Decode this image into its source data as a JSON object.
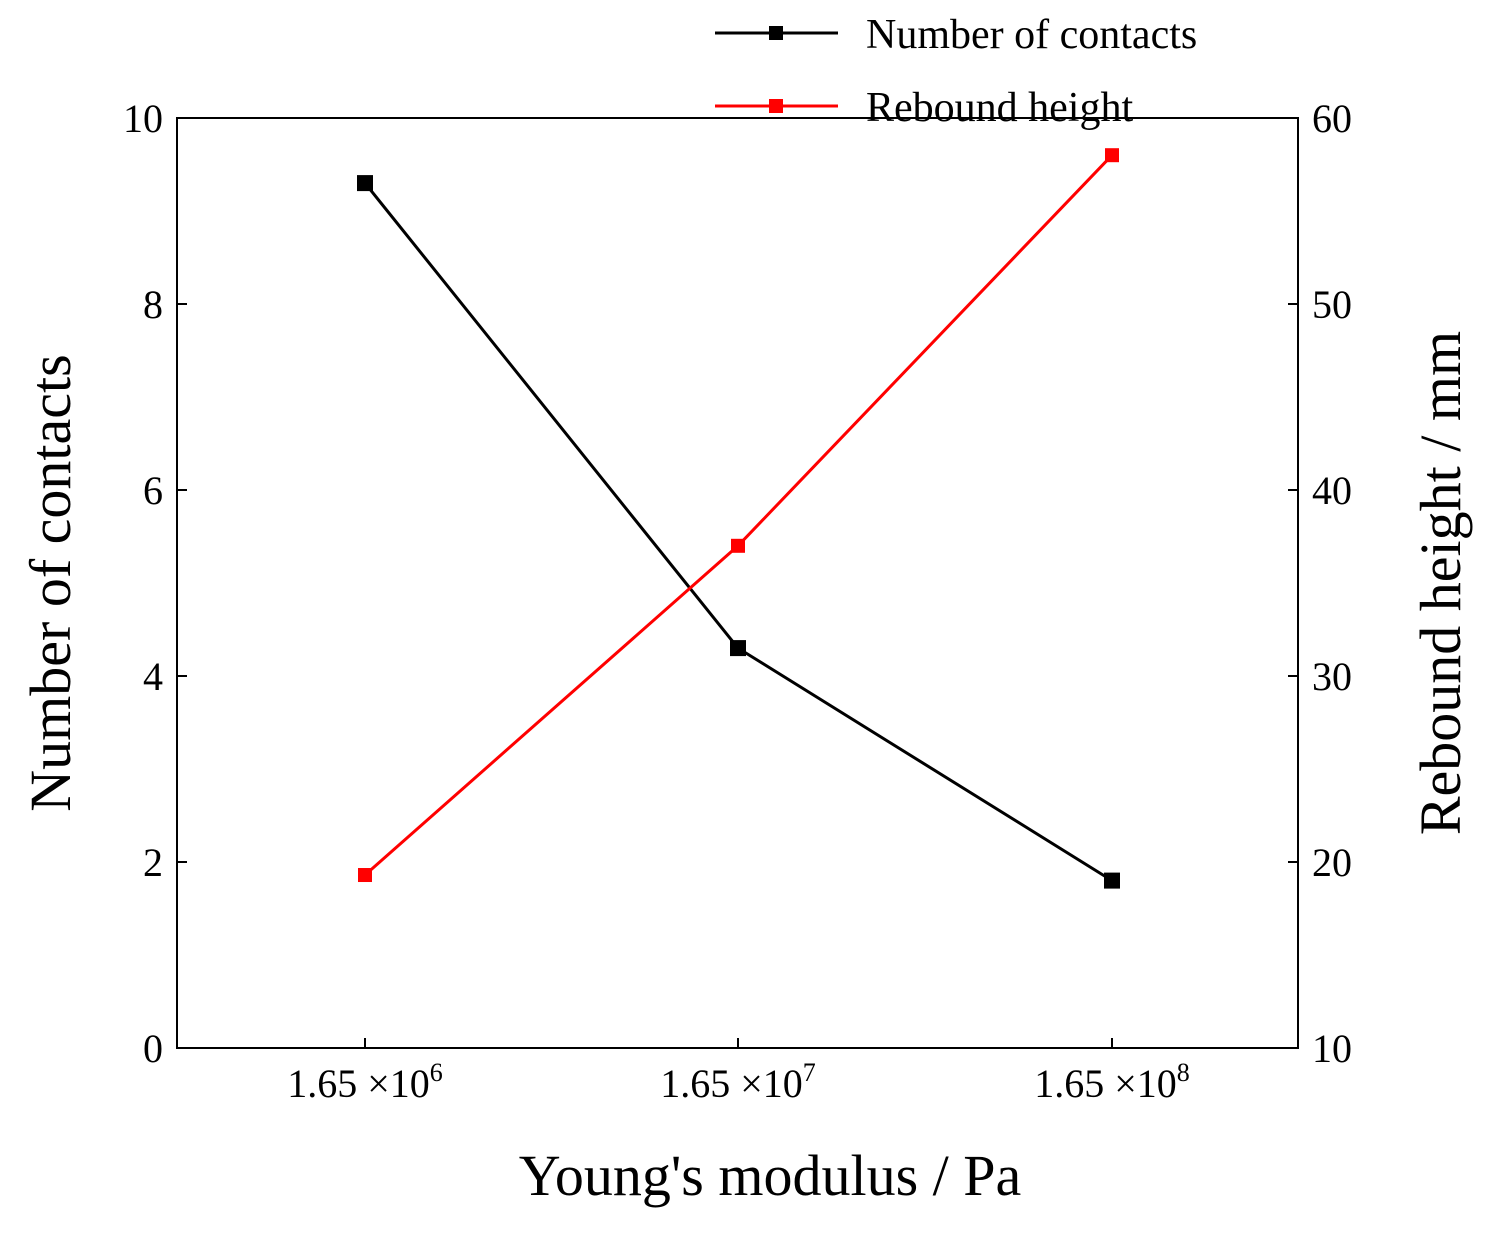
{
  "chart_data": {
    "type": "line",
    "title": "",
    "xlabel": "Young's modulus / Pa",
    "ylabel_left": "Number of contacts",
    "ylabel_right": "Rebound height / mm",
    "categories": [
      {
        "mantissa": "1.65",
        "times": "×10",
        "exponent": "6"
      },
      {
        "mantissa": "1.65",
        "times": "×10",
        "exponent": "7"
      },
      {
        "mantissa": "1.65",
        "times": "×10",
        "exponent": "8"
      }
    ],
    "left_axis": {
      "ylim": [
        0,
        10
      ],
      "ticks": [
        0,
        2,
        4,
        6,
        8,
        10
      ],
      "tick_labels": [
        "0",
        "2",
        "4",
        "6",
        "8",
        "10"
      ]
    },
    "right_axis": {
      "ylim": [
        10,
        60
      ],
      "ticks": [
        10,
        20,
        30,
        40,
        50,
        60
      ],
      "tick_labels": [
        "10",
        "20",
        "30",
        "40",
        "50",
        "60"
      ]
    },
    "series": [
      {
        "name": "Number of contacts",
        "axis": "left",
        "color": "#000000",
        "values": [
          9.3,
          4.3,
          1.8
        ]
      },
      {
        "name": "Rebound height",
        "axis": "right",
        "color": "#ff0000",
        "values": [
          19.3,
          37.0,
          58.0
        ]
      }
    ],
    "legend_position": "top-right",
    "grid": false
  }
}
